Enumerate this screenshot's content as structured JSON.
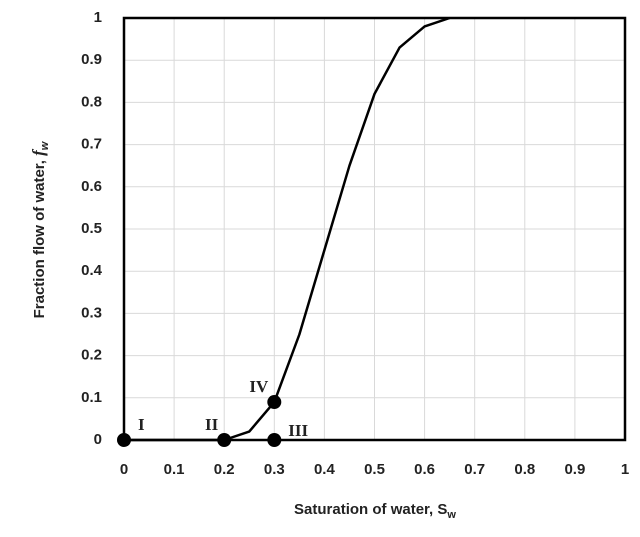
{
  "chart_data": {
    "type": "line",
    "xlabel": {
      "text": "Saturation of water, ",
      "symbol": "S",
      "subscript": "w"
    },
    "ylabel": {
      "text": "Fraction flow of water, ",
      "symbol": "f",
      "subscript": "w"
    },
    "x": [
      0,
      0.05,
      0.1,
      0.15,
      0.2,
      0.25,
      0.3,
      0.35,
      0.4,
      0.45,
      0.5,
      0.55,
      0.6,
      0.65
    ],
    "series": [
      {
        "name": null,
        "color": "#000000",
        "values": [
          0,
          0,
          0,
          0,
          0,
          0.02,
          0.09,
          0.25,
          0.45,
          0.65,
          0.82,
          0.93,
          0.98,
          1
        ]
      }
    ],
    "points": [
      {
        "label": "I",
        "x": 0,
        "y": 0
      },
      {
        "label": "II",
        "x": 0.2,
        "y": 0
      },
      {
        "label": "III",
        "x": 0.3,
        "y": 0
      },
      {
        "label": "IV",
        "x": 0.3,
        "y": 0.09
      }
    ],
    "xlim": [
      0,
      1
    ],
    "ylim": [
      0,
      1
    ],
    "xticks": [
      0,
      0.1,
      0.2,
      0.3,
      0.4,
      0.5,
      0.6,
      0.7,
      0.8,
      0.9,
      1
    ],
    "yticks": [
      0,
      0.1,
      0.2,
      0.3,
      0.4,
      0.5,
      0.6,
      0.7,
      0.8,
      0.9,
      1
    ],
    "grid": true
  }
}
